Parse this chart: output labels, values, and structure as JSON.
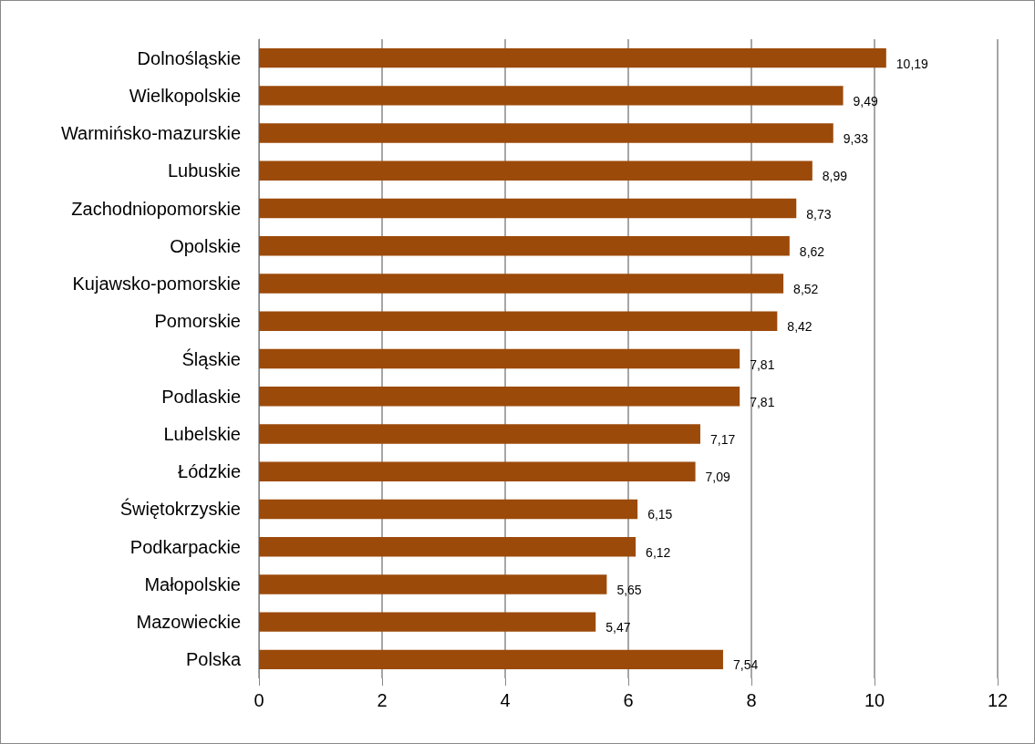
{
  "chart_data": {
    "type": "bar",
    "orientation": "horizontal",
    "categories": [
      "Dolnośląskie",
      "Wielkopolskie",
      "Warmińsko-mazurskie",
      "Lubuskie",
      "Zachodniopomorskie",
      "Opolskie",
      "Kujawsko-pomorskie",
      "Pomorskie",
      "Śląskie",
      "Podlaskie",
      "Lubelskie",
      "Łódzkie",
      "Świętokrzyskie",
      "Podkarpackie",
      "Małopolskie",
      "Mazowieckie",
      "Polska"
    ],
    "values": [
      10.19,
      9.49,
      9.33,
      8.99,
      8.73,
      8.62,
      8.52,
      8.42,
      7.81,
      7.81,
      7.17,
      7.09,
      6.15,
      6.12,
      5.65,
      5.47,
      7.54
    ],
    "value_labels": [
      "10,19",
      "9,49",
      "9,33",
      "8,99",
      "8,73",
      "8,62",
      "8,52",
      "8,42",
      "7,81",
      "7,81",
      "7,17",
      "7,09",
      "6,15",
      "6,12",
      "5,65",
      "5,47",
      "7,54"
    ],
    "color": "#9c4a0a",
    "xlim": [
      0,
      12
    ],
    "xticks": [
      0,
      2,
      4,
      6,
      8,
      10,
      12
    ],
    "grid": "x"
  }
}
